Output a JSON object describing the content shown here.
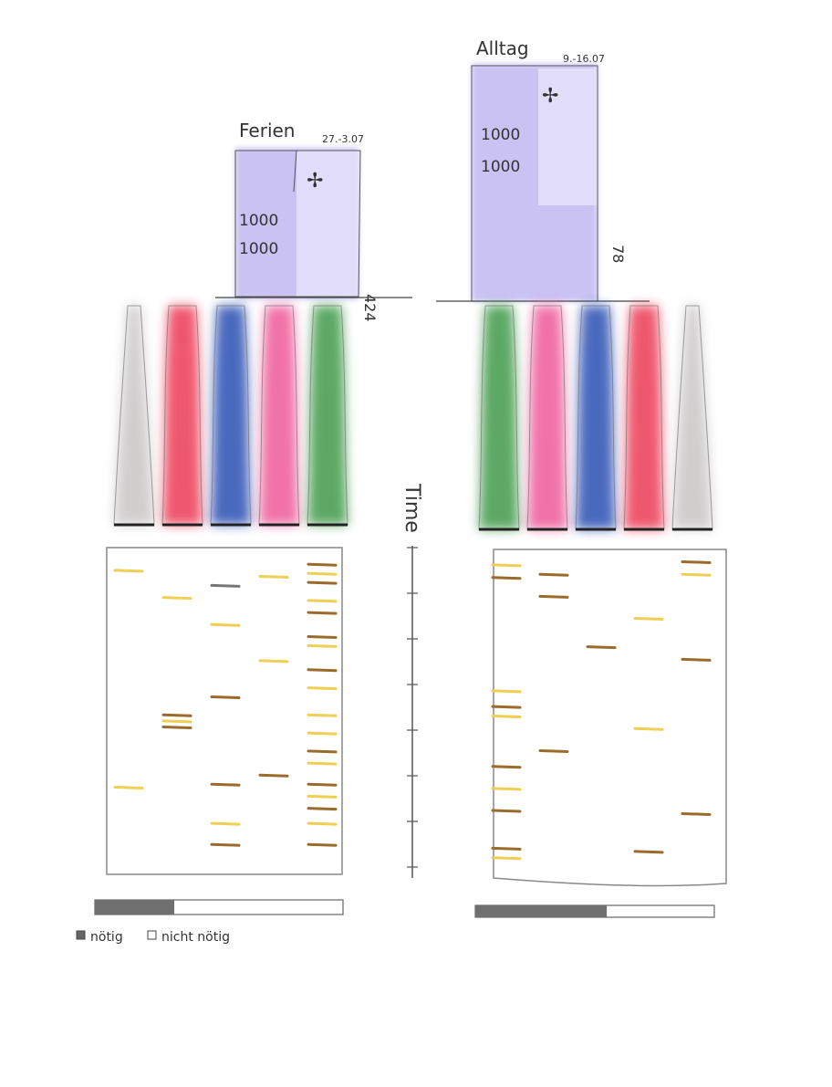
{
  "panels": [
    {
      "key": "left",
      "title": "Ferien",
      "date": "27.-3.07",
      "amount": "424",
      "note_value_1": "1000",
      "note_value_2": "1000",
      "flow_colors": [
        "#c9c6c6",
        "#ec3a55",
        "#2c4fb3",
        "#ee5a9a",
        "#3f9a4a"
      ],
      "timeline": {
        "rows": [
          {
            "t": 0.03,
            "col": 0,
            "tone": "yellow"
          },
          {
            "t": 0.12,
            "col": 1,
            "tone": "yellow"
          },
          {
            "t": 0.08,
            "col": 2,
            "tone": "grey"
          },
          {
            "t": 0.21,
            "col": 2,
            "tone": "yellow"
          },
          {
            "t": 0.05,
            "col": 3,
            "tone": "yellow"
          },
          {
            "t": 0.33,
            "col": 3,
            "tone": "yellow"
          },
          {
            "t": 0.45,
            "col": 2,
            "tone": "brown"
          },
          {
            "t": 0.51,
            "col": 1,
            "tone": "brown"
          },
          {
            "t": 0.53,
            "col": 1,
            "tone": "yellow"
          },
          {
            "t": 0.55,
            "col": 1,
            "tone": "brown"
          },
          {
            "t": 0.71,
            "col": 3,
            "tone": "brown"
          },
          {
            "t": 0.75,
            "col": 0,
            "tone": "yellow"
          },
          {
            "t": 0.74,
            "col": 2,
            "tone": "brown"
          },
          {
            "t": 0.87,
            "col": 2,
            "tone": "yellow"
          },
          {
            "t": 0.94,
            "col": 2,
            "tone": "brown"
          },
          {
            "t": 0.01,
            "col": 4,
            "tone": "brown"
          },
          {
            "t": 0.04,
            "col": 4,
            "tone": "yellow"
          },
          {
            "t": 0.07,
            "col": 4,
            "tone": "brown"
          },
          {
            "t": 0.13,
            "col": 4,
            "tone": "yellow"
          },
          {
            "t": 0.17,
            "col": 4,
            "tone": "brown"
          },
          {
            "t": 0.25,
            "col": 4,
            "tone": "brown"
          },
          {
            "t": 0.28,
            "col": 4,
            "tone": "yellow"
          },
          {
            "t": 0.36,
            "col": 4,
            "tone": "brown"
          },
          {
            "t": 0.42,
            "col": 4,
            "tone": "yellow"
          },
          {
            "t": 0.51,
            "col": 4,
            "tone": "yellow"
          },
          {
            "t": 0.57,
            "col": 4,
            "tone": "yellow"
          },
          {
            "t": 0.63,
            "col": 4,
            "tone": "brown"
          },
          {
            "t": 0.67,
            "col": 4,
            "tone": "yellow"
          },
          {
            "t": 0.74,
            "col": 4,
            "tone": "brown"
          },
          {
            "t": 0.78,
            "col": 4,
            "tone": "yellow"
          },
          {
            "t": 0.82,
            "col": 4,
            "tone": "brown"
          },
          {
            "t": 0.87,
            "col": 4,
            "tone": "yellow"
          },
          {
            "t": 0.94,
            "col": 4,
            "tone": "brown"
          }
        ]
      },
      "necessity_fraction": 0.32
    },
    {
      "key": "right",
      "title": "Alltag",
      "date": "9.-16.07",
      "amount": "78",
      "note_value_1": "1000",
      "note_value_2": "1000",
      "flow_colors": [
        "#3f9a4a",
        "#ee5a9a",
        "#2c4fb3",
        "#ec3a55",
        "#c9c6c6"
      ],
      "timeline": {
        "rows": [
          {
            "t": 0.02,
            "col": 0,
            "tone": "yellow"
          },
          {
            "t": 0.06,
            "col": 0,
            "tone": "brown"
          },
          {
            "t": 0.05,
            "col": 1,
            "tone": "brown"
          },
          {
            "t": 0.12,
            "col": 1,
            "tone": "brown"
          },
          {
            "t": 0.19,
            "col": 3,
            "tone": "yellow"
          },
          {
            "t": 0.28,
            "col": 2,
            "tone": "brown"
          },
          {
            "t": 0.32,
            "col": 4,
            "tone": "brown"
          },
          {
            "t": 0.01,
            "col": 4,
            "tone": "brown"
          },
          {
            "t": 0.05,
            "col": 4,
            "tone": "yellow"
          },
          {
            "t": 0.42,
            "col": 0,
            "tone": "yellow"
          },
          {
            "t": 0.47,
            "col": 0,
            "tone": "brown"
          },
          {
            "t": 0.5,
            "col": 0,
            "tone": "yellow"
          },
          {
            "t": 0.54,
            "col": 3,
            "tone": "yellow"
          },
          {
            "t": 0.61,
            "col": 1,
            "tone": "brown"
          },
          {
            "t": 0.66,
            "col": 0,
            "tone": "brown"
          },
          {
            "t": 0.73,
            "col": 0,
            "tone": "yellow"
          },
          {
            "t": 0.8,
            "col": 0,
            "tone": "brown"
          },
          {
            "t": 0.81,
            "col": 4,
            "tone": "brown"
          },
          {
            "t": 0.92,
            "col": 0,
            "tone": "brown"
          },
          {
            "t": 0.95,
            "col": 0,
            "tone": "yellow"
          },
          {
            "t": 0.93,
            "col": 3,
            "tone": "brown"
          }
        ]
      },
      "necessity_fraction": 0.55
    }
  ],
  "axis": {
    "label": "Time"
  },
  "legend": {
    "needed": "nötig",
    "not_needed": "nicht nötig"
  },
  "colors": {
    "banknote": "#b8aef0",
    "yellow": "#f0cf55",
    "brown": "#9a6b2a",
    "grey_tick": "#777777",
    "ink": "#444444"
  }
}
